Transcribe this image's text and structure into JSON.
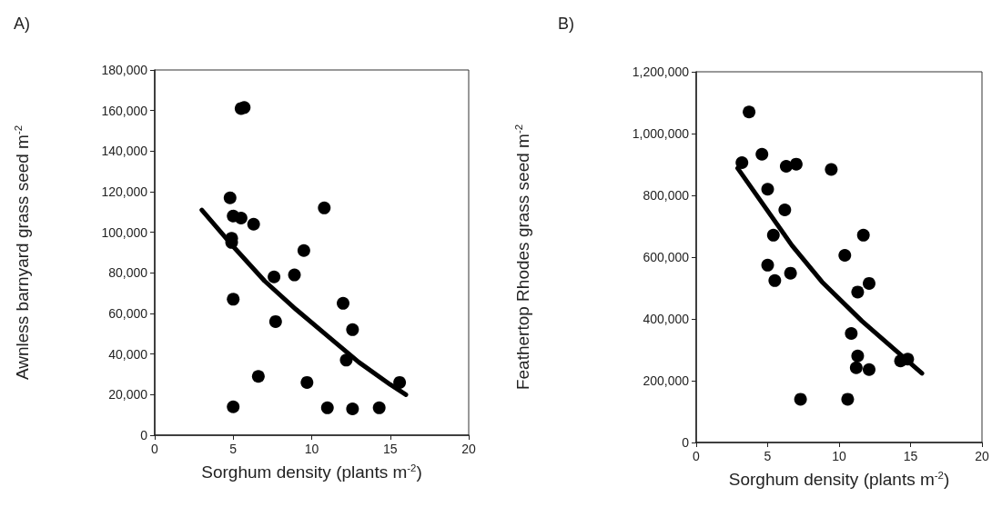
{
  "chart_data": [
    {
      "type": "scatter",
      "title": "A)",
      "xlabel": "Sorghum density (plants m$^{-2}$)",
      "ylabel": "Awnless barnyard grass seed m$^{-2}$",
      "marker": "circle",
      "grid": false,
      "xlim": [
        0,
        20
      ],
      "xticks": [
        0,
        5,
        10,
        15,
        20
      ],
      "ylim": [
        0,
        180000
      ],
      "yticks": [
        {
          "value": 0,
          "label": "0"
        },
        {
          "value": 20000,
          "label": "20,000"
        },
        {
          "value": 40000,
          "label": "40,000"
        },
        {
          "value": 60000,
          "label": "60,000"
        },
        {
          "value": 80000,
          "label": "80,000"
        },
        {
          "value": 100000,
          "label": "100,000"
        },
        {
          "value": 120000,
          "label": "120,000"
        },
        {
          "value": 140000,
          "label": "140,000"
        },
        {
          "value": 160000,
          "label": "160,000"
        },
        {
          "value": 180000,
          "label": "180,000"
        }
      ],
      "series": [
        {
          "type": "scatter",
          "color": "#000000",
          "x": [
            5.5,
            5.7,
            4.8,
            5.0,
            5.5,
            6.3,
            10.8,
            4.9,
            4.9,
            9.5,
            7.6,
            8.9,
            12.0,
            5.0,
            7.7,
            12.6,
            12.2,
            6.6,
            9.7,
            15.6,
            5.0,
            11.0,
            12.6,
            14.3
          ],
          "values": [
            161000,
            161500,
            117000,
            108000,
            107000,
            104000,
            112000,
            97000,
            95000,
            91000,
            78000,
            79000,
            65000,
            67000,
            56000,
            52000,
            37000,
            29000,
            26000,
            26000,
            14000,
            13500,
            13000,
            13500
          ]
        },
        {
          "type": "line",
          "color": "#000000",
          "marker": "none",
          "x": [
            3,
            5,
            7,
            9,
            11,
            13,
            15,
            16
          ],
          "values": [
            111000,
            93000,
            76000,
            62000,
            49000,
            36000,
            25000,
            20000
          ]
        }
      ]
    },
    {
      "type": "scatter",
      "title": "B)",
      "xlabel": "Sorghum density (plants m$^{-2}$)",
      "ylabel": "Feathertop Rhodes grass seed m$^{-2}$",
      "marker": "circle",
      "grid": false,
      "xlim": [
        0,
        20
      ],
      "xticks": [
        0,
        5,
        10,
        15,
        20
      ],
      "ylim": [
        0,
        1200000
      ],
      "yticks": [
        {
          "value": 0,
          "label": "0"
        },
        {
          "value": 200000,
          "label": "200,000"
        },
        {
          "value": 400000,
          "label": "400,000"
        },
        {
          "value": 600000,
          "label": "600,000"
        },
        {
          "value": 800000,
          "label": "800,000"
        },
        {
          "value": 1000000,
          "label": "1,000,000"
        },
        {
          "value": 1200000,
          "label": "1,200,000"
        }
      ],
      "series": [
        {
          "type": "scatter",
          "color": "#000000",
          "x": [
            3.7,
            3.2,
            4.6,
            6.3,
            7.0,
            9.45,
            5.0,
            6.2,
            5.4,
            11.7,
            10.4,
            5.0,
            6.6,
            5.5,
            12.1,
            11.3,
            10.85,
            11.3,
            11.2,
            12.1,
            14.3,
            14.8,
            7.3,
            10.6
          ],
          "values": [
            1070000,
            906000,
            933000,
            894000,
            901000,
            884000,
            820000,
            753000,
            671000,
            671000,
            606000,
            574000,
            548000,
            524000,
            515000,
            487000,
            353000,
            280000,
            242000,
            236000,
            264000,
            270000,
            140000,
            140000
          ]
        },
        {
          "type": "line",
          "color": "#000000",
          "marker": "none",
          "x": [
            2.9,
            6.7,
            8.8,
            11.6,
            15.8
          ],
          "values": [
            888000,
            638000,
            520000,
            393000,
            224000
          ]
        }
      ]
    }
  ]
}
